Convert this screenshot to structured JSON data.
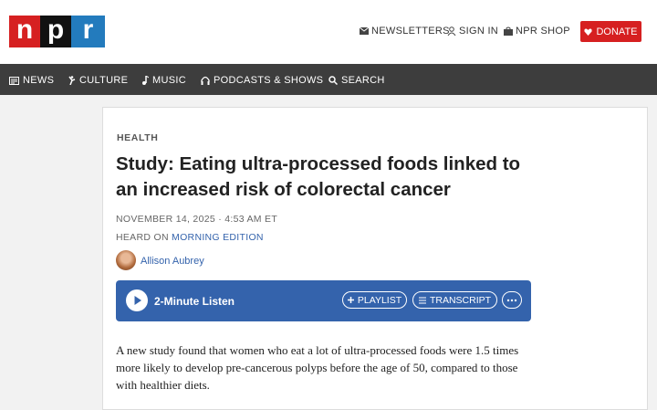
{
  "header": {
    "logo": [
      "n",
      "p",
      "r"
    ],
    "links": [
      "NEWSLETTERS",
      "SIGN IN",
      "NPR SHOP"
    ],
    "donate": "DONATE"
  },
  "nav": [
    "NEWS",
    "CULTURE",
    "MUSIC",
    "PODCASTS & SHOWS",
    "SEARCH"
  ],
  "article": {
    "section": "HEALTH",
    "title": "Study: Eating ultra-processed foods linked to an increased risk of colorectal cancer",
    "date": "NOVEMBER 14, 2025 · 4:53 AM ET",
    "heard_on": {
      "prefix": "HEARD ON",
      "program": "MORNING EDITION"
    },
    "author": "Allison Aubrey",
    "player": {
      "label": "2-Minute Listen",
      "playlist": "PLAYLIST",
      "transcript": "TRANSCRIPT"
    },
    "body": "A new study found that women who eat a lot of ultra-processed foods were 1.5 times more likely to develop pre-cancerous polyps before the age of 50, compared to those with healthier diets."
  }
}
